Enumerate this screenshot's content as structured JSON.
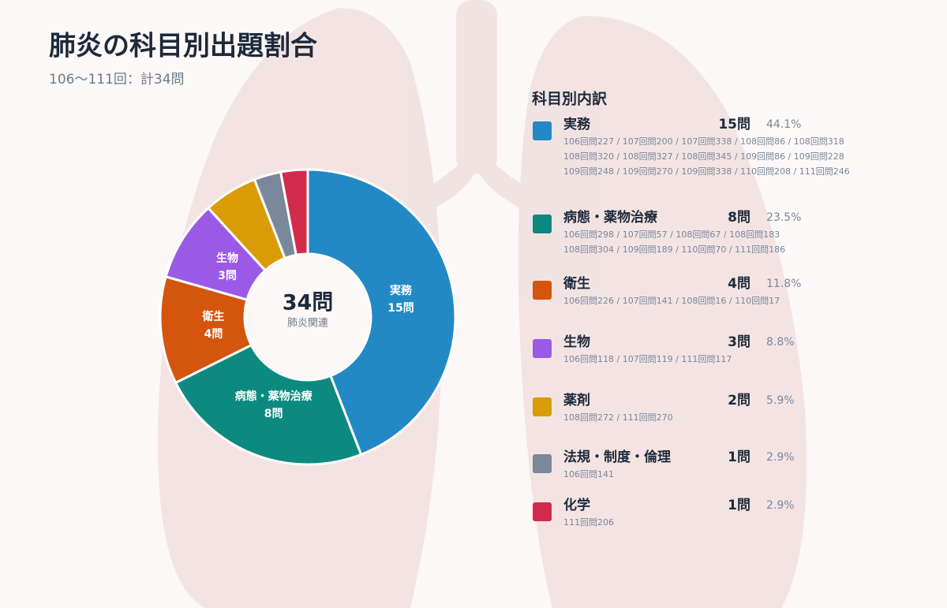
{
  "chart_data": {
    "type": "donut",
    "title": "肺炎の科目別出題割合",
    "subtitle": "106～111回：計34問",
    "total": {
      "value": 34,
      "label": "34問"
    },
    "center_caption": "肺炎関連",
    "legend_title": "科目別内訳",
    "categories": [
      "実務",
      "病態・薬物治療",
      "衛生",
      "生物",
      "薬剤",
      "法規・制度・倫理",
      "化学"
    ],
    "values": [
      15,
      8,
      4,
      3,
      2,
      1,
      1
    ],
    "value_labels": [
      "15問",
      "8問",
      "4問",
      "3問",
      "2問",
      "1問",
      "1問"
    ],
    "percents": [
      44.1,
      23.5,
      11.8,
      8.8,
      5.9,
      2.9,
      2.9
    ],
    "percent_labels": [
      "44.1%",
      "23.5%",
      "11.8%",
      "8.8%",
      "5.9%",
      "2.9%",
      "2.9%"
    ],
    "colors": [
      "#2389c4",
      "#0c8a80",
      "#d4550e",
      "#9b5ae6",
      "#d99b06",
      "#7b879a",
      "#d22c4c"
    ],
    "details": [
      [
        "106回問227 / 107回問200 / 107回問338 / 108回問86 / 108回問318",
        "108回問320 / 108回問327 / 108回問345 / 109回問86 / 109回問228",
        "109回問248 / 109回問270 / 109回問338 / 110回問208 / 111回問246"
      ],
      [
        "106回問298 / 107回問57 / 108回問67 / 108回問183",
        "108回問304 / 109回問189 / 110回問70 / 111回問186"
      ],
      [
        "106回問226 / 107回問141 / 108回問16 / 110回問17"
      ],
      [
        "106回問118 / 107回問119 / 111回問117"
      ],
      [
        "108回問272 / 111回問270"
      ],
      [
        "106回問141"
      ],
      [
        "111回問206"
      ]
    ]
  }
}
